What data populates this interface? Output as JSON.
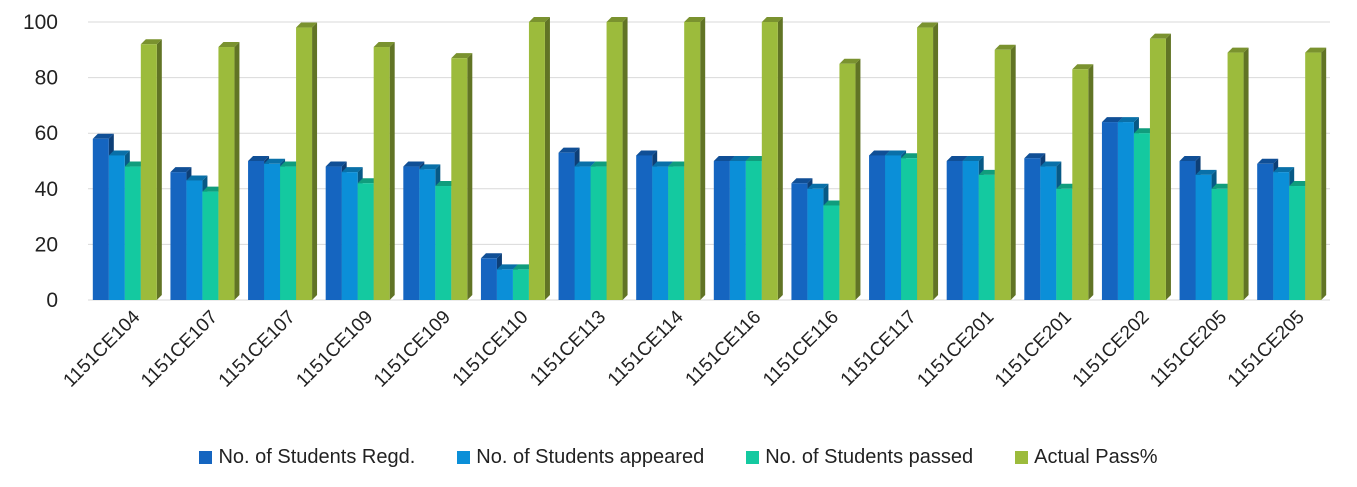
{
  "chart_data": {
    "type": "bar",
    "title": "",
    "xlabel": "",
    "ylabel": "",
    "ylim": [
      0,
      100
    ],
    "yticks": [
      0,
      20,
      40,
      60,
      80,
      100
    ],
    "grid": true,
    "legend_position": "bottom",
    "categories": [
      "1151CE104",
      "1151CE107",
      "1151CE107",
      "1151CE109",
      "1151CE109",
      "1151CE110",
      "1151CE113",
      "1151CE114",
      "1151CE116",
      "1151CE116",
      "1151CE117",
      "1151CE201",
      "1151CE201",
      "1151CE202",
      "1151CE205",
      "1151CE205"
    ],
    "series": [
      {
        "name": "No. of Students Regd.",
        "color": "#1565C0",
        "values": [
          58,
          46,
          50,
          48,
          48,
          15,
          53,
          52,
          50,
          42,
          52,
          50,
          51,
          64,
          50,
          49
        ]
      },
      {
        "name": "No. of Students appeared",
        "color": "#0B8FD8",
        "values": [
          52,
          43,
          49,
          46,
          47,
          11,
          48,
          48,
          50,
          40,
          52,
          50,
          48,
          64,
          45,
          46
        ]
      },
      {
        "name": "No. of Students passed",
        "color": "#14C9A0",
        "values": [
          48,
          39,
          48,
          42,
          41,
          11,
          48,
          48,
          50,
          34,
          51,
          45,
          40,
          60,
          40,
          41
        ]
      },
      {
        "name": "Actual Pass%",
        "color": "#9CBB3C",
        "values": [
          92,
          91,
          98,
          91,
          87,
          100,
          100,
          100,
          100,
          85,
          98,
          90,
          83,
          94,
          89,
          89
        ]
      }
    ]
  }
}
